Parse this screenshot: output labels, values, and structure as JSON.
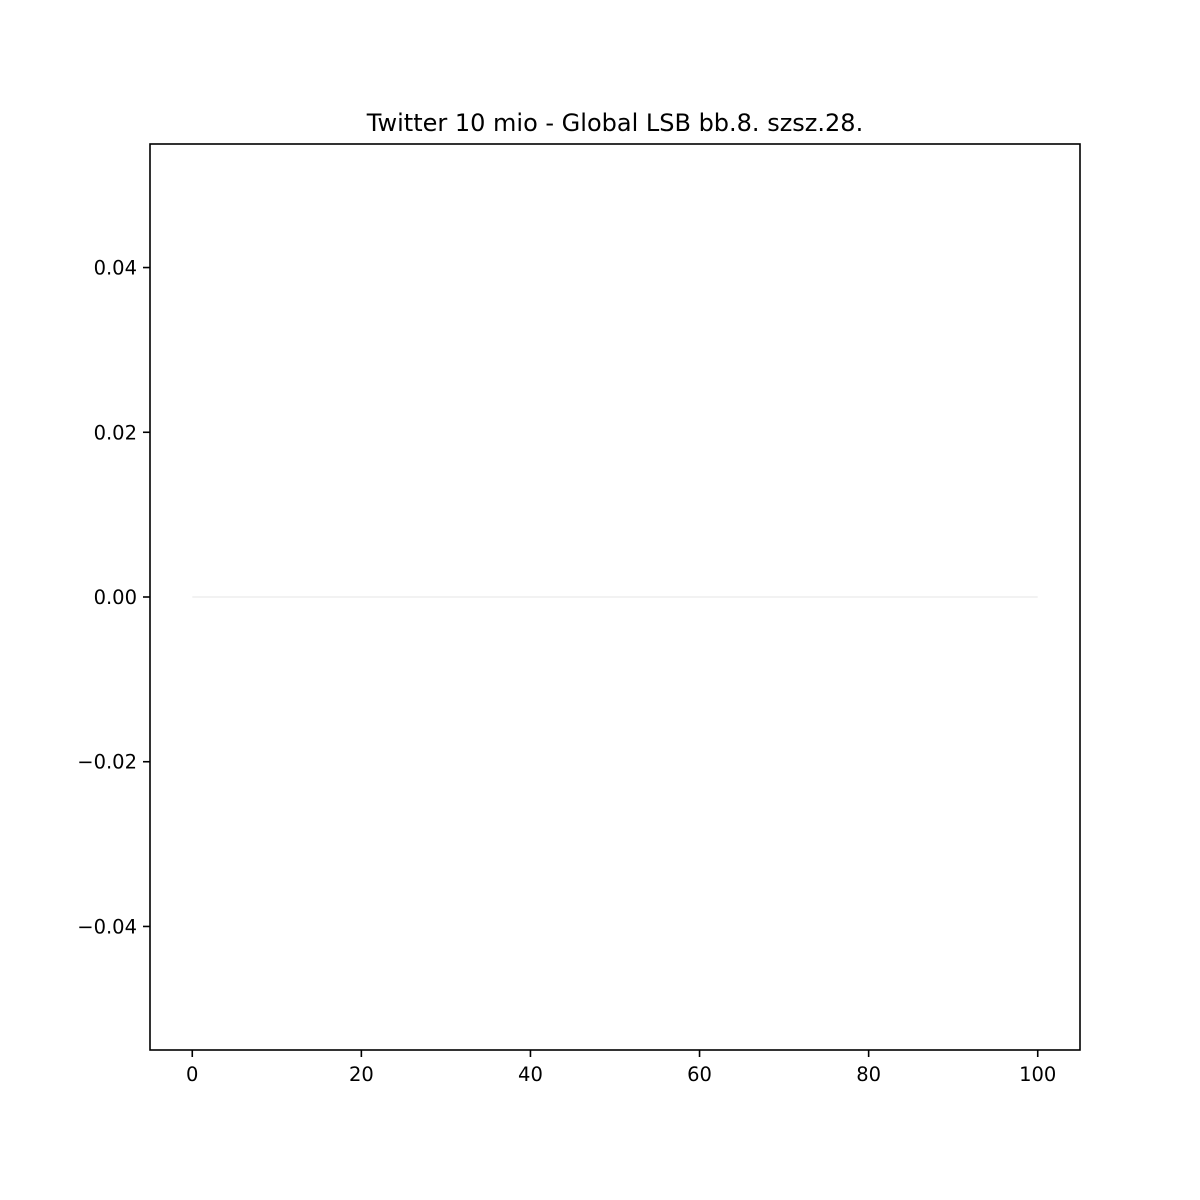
{
  "chart_data": {
    "type": "line",
    "title": "Twitter 10 mio - Global LSB bb.8. szsz.28.",
    "xlabel": "",
    "ylabel": "",
    "xlim": [
      -5,
      105
    ],
    "ylim": [
      -0.055,
      0.055
    ],
    "x_ticks": [
      0,
      20,
      40,
      60,
      80,
      100
    ],
    "x_tick_labels": [
      "0",
      "20",
      "40",
      "60",
      "80",
      "100"
    ],
    "y_ticks": [
      0.04,
      0.02,
      0.0,
      -0.02,
      -0.04
    ],
    "y_tick_labels": [
      "0.04",
      "0.02",
      "0.00",
      "−0.02",
      "−0.04"
    ],
    "grid": false,
    "legend": "none",
    "series": [
      {
        "x": [
          0,
          100
        ],
        "y": [
          0,
          0
        ],
        "color": "#ebebeb"
      }
    ]
  }
}
